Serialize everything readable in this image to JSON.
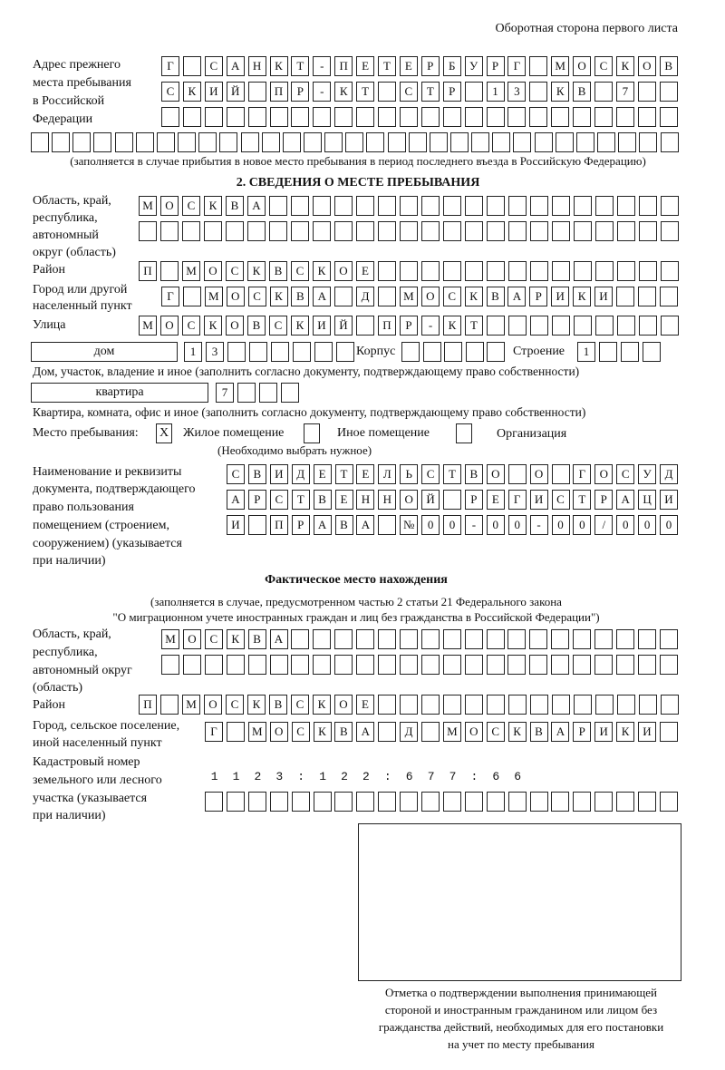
{
  "header": "Оборотная сторона первого листа",
  "prev_address": {
    "label": [
      "Адрес прежнего",
      "места пребывания",
      "в Российской",
      "Федерации"
    ],
    "rows": [
      "Г САНКТ-ПЕТЕРБУРГ МОСКОВ",
      "СКИЙ ПР-КТ СТР 13 КВ 7  ",
      "                        ",
      "                               "
    ],
    "note": "(заполняется в случае прибытия в новое место пребывания в период последнего въезда в Российскую Федерацию)"
  },
  "section2": {
    "title": "2. СВЕДЕНИЯ О МЕСТЕ ПРЕБЫВАНИЯ",
    "region_label": [
      "Область, край,",
      "республика,",
      "автономный",
      "округ (область)"
    ],
    "region_rows": [
      "МОСКВА                   ",
      "                         "
    ],
    "district_label": "Район",
    "district_row": "П МОСКВСКОЕ              ",
    "city_label": [
      "Город или другой",
      "населенный пункт"
    ],
    "city_row": "Г МОСКВА Д МОСКВАРИКИ   ",
    "street_label": "Улица",
    "street_row": "МОСКОВСКИЙ ПР-КТ         ",
    "house_type": "дом",
    "house_cells": "13      ",
    "korpus_label": "Корпус",
    "korpus_cells": "     ",
    "building_label": "Строение",
    "building_cells": "1   ",
    "house_note": "Дом, участок, владение и иное (заполнить согласно документу, подтверждающему право собственности)",
    "flat_type": "квартира",
    "flat_cells": "7   ",
    "flat_note": "Квартира, комната, офис и иное (заполнить согласно документу, подтверждающему право собственности)",
    "stay_label": "Место пребывания:",
    "stay_options": [
      {
        "label": "Жилое помещение",
        "mark": "X"
      },
      {
        "label": "Иное помещение",
        "mark": ""
      },
      {
        "label": "Организация",
        "mark": ""
      }
    ],
    "stay_note": "(Необходимо выбрать нужное)",
    "doc_label": [
      "Наименование и реквизиты",
      "документа, подтверждающего",
      "право пользования",
      "помещением (строением,",
      "сооружением) (указывается",
      "при наличии)"
    ],
    "doc_rows": [
      "СВИДЕТЕЛЬСТВО О ГОСУД",
      "АРСТВЕННОЙ РЕГИСТРАЦИ",
      "И ПРАВА №00-00-00/000"
    ]
  },
  "actual": {
    "title": "Фактическое место нахождения",
    "note": [
      "(заполняется в случае, предусмотренном частью 2 статьи 21 Федерального закона",
      "\"О миграционном учете иностранных граждан и лиц без гражданства в Российской Федерации\")"
    ],
    "region_label": [
      "Область, край,",
      "республика,",
      "автономный округ",
      "(область)"
    ],
    "region_rows": [
      "МОСКВА                  ",
      "                        "
    ],
    "district_label": "Район",
    "district_row": "П МОСКВСКОЕ              ",
    "city_label": [
      "Город, сельское поселение,",
      "иной населенный пункт"
    ],
    "city_row": "Г МОСКВА Д МОСКВАРИКИ ",
    "cadastre_label": [
      "Кадастровый номер",
      "земельного или лесного",
      "участка (указывается",
      "при наличии)"
    ],
    "cadastre_rows": [
      "1123:122:677:66       ",
      "                      "
    ]
  },
  "stamp_caption": [
    "Отметка о подтверждении выполнения принимающей",
    "стороной и иностранным гражданином или лицом без",
    "гражданства действий, необходимых для его постановки",
    "на учет по месту пребывания"
  ]
}
